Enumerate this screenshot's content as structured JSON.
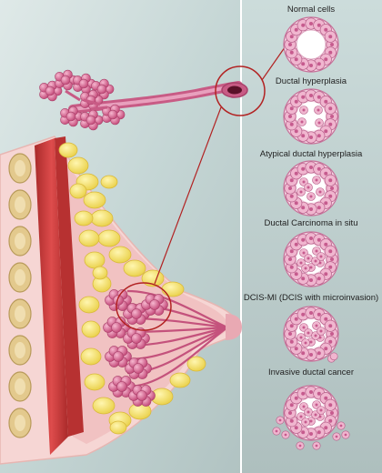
{
  "stages": [
    {
      "label": "Normal cells",
      "pattern": "normal"
    },
    {
      "label": "Ductal hyperplasia",
      "pattern": "hyperplasia"
    },
    {
      "label": "Atypical ductal hyperplasia",
      "pattern": "atypical"
    },
    {
      "label": "Ductal Carcinoma in situ",
      "pattern": "dcis"
    },
    {
      "label": "DCIS-MI (DCIS with microinvasion)",
      "pattern": "dcis-mi"
    },
    {
      "label": "Invasive ductal cancer",
      "pattern": "invasive"
    }
  ],
  "colors": {
    "background_left": "#c9d9d8",
    "background_right": "#b8c9c7",
    "muscle": "#c83a3a",
    "rib": "#e3c98d",
    "fat": "#f2e06b",
    "tissue": "#f3c9c9",
    "lobule": "#d35a86",
    "duct": "#c4527c",
    "cell": "#f0b6cf",
    "cell_nucleus": "#c65b8e",
    "callout_line": "#b22222"
  }
}
